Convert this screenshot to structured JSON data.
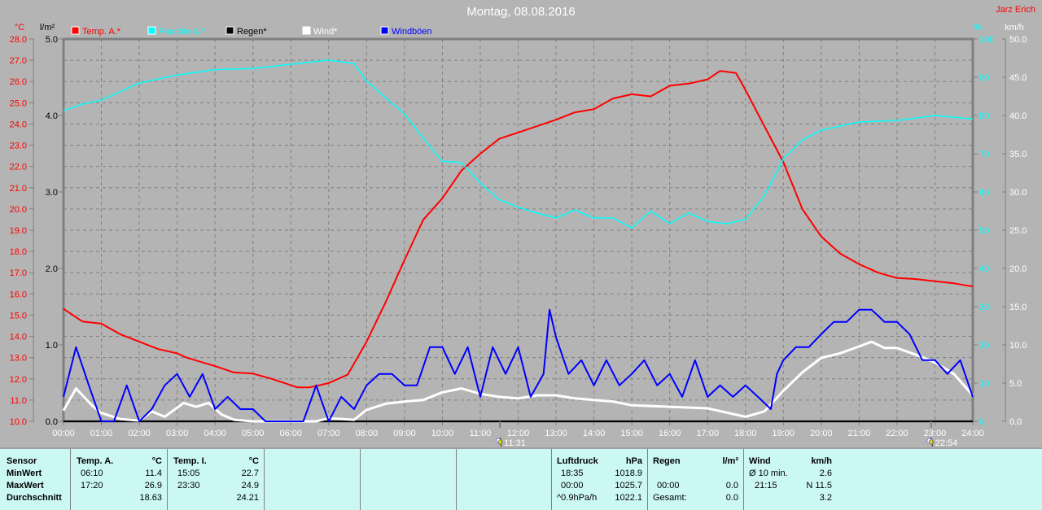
{
  "title": "Montag, 08.08.2016",
  "author": "Jarz Erich",
  "colors": {
    "temp": "#ff0000",
    "humidity": "#00ffff",
    "rain": "#000000",
    "wind": "#ffffff",
    "gusts": "#0000ff"
  },
  "markers": [
    {
      "label": "11:31",
      "time": 11.52,
      "icon": "sun-marker-icon"
    },
    {
      "label": "22:54",
      "time": 22.9,
      "icon": "moon-marker-icon"
    }
  ],
  "chart_data": {
    "type": "line",
    "title": "Montag, 08.08.2016",
    "x_unit": "hours",
    "xlim": [
      0,
      24
    ],
    "x_ticks": [
      "00:00",
      "01:00",
      "02:00",
      "03:00",
      "04:00",
      "05:00",
      "06:00",
      "07:00",
      "08:00",
      "09:00",
      "10:00",
      "11:00",
      "12:00",
      "13:00",
      "14:00",
      "15:00",
      "16:00",
      "17:00",
      "18:00",
      "19:00",
      "20:00",
      "21:00",
      "22:00",
      "23:00",
      "24:00"
    ],
    "axes": {
      "temp": {
        "unit": "°C",
        "range": [
          10,
          28
        ],
        "ticks": [
          "10.0",
          "11.0",
          "12.0",
          "13.0",
          "14.0",
          "15.0",
          "16.0",
          "17.0",
          "18.0",
          "19.0",
          "20.0",
          "21.0",
          "22.0",
          "23.0",
          "24.0",
          "25.0",
          "26.0",
          "27.0",
          "28.0"
        ]
      },
      "rain": {
        "unit": "l/m²",
        "range": [
          0,
          5
        ],
        "ticks": [
          "0.0",
          "1.0",
          "2.0",
          "3.0",
          "4.0",
          "5.0"
        ]
      },
      "humidity": {
        "unit": "%",
        "range": [
          0,
          100
        ],
        "ticks": [
          "0",
          "10",
          "20",
          "30",
          "40",
          "50",
          "60",
          "70",
          "80",
          "90",
          "100"
        ]
      },
      "wind": {
        "unit": "km/h",
        "range": [
          0,
          50
        ],
        "ticks": [
          "0.0",
          "5.0",
          "10.0",
          "15.0",
          "20.0",
          "25.0",
          "30.0",
          "35.0",
          "40.0",
          "45.0",
          "50.0"
        ]
      }
    },
    "legend": [
      "Temp. A.*",
      "Feuchte A.*",
      "Regen*",
      "Wind*",
      "Windböen"
    ],
    "legend_placement": "top",
    "grid": true,
    "series": [
      {
        "name": "Temp. A.*",
        "axis": "temp",
        "color": "#ff0000",
        "x": [
          0,
          0.5,
          1,
          1.5,
          2,
          2.5,
          3,
          3.25,
          4,
          4.5,
          5,
          5.5,
          6,
          6.17,
          6.5,
          7,
          7.5,
          8,
          8.5,
          9,
          9.5,
          10,
          10.5,
          11,
          11.5,
          12,
          12.5,
          13,
          13.5,
          14,
          14.5,
          15,
          15.5,
          16,
          16.5,
          17,
          17.33,
          17.75,
          18,
          18.5,
          19,
          19.5,
          20,
          20.5,
          21,
          21.5,
          22,
          22.5,
          23,
          23.5,
          24
        ],
        "y": [
          15.3,
          14.7,
          14.6,
          14.1,
          13.75,
          13.4,
          13.2,
          13.0,
          12.6,
          12.3,
          12.25,
          12.0,
          11.7,
          11.6,
          11.6,
          11.8,
          12.2,
          13.75,
          15.6,
          17.6,
          19.5,
          20.5,
          21.8,
          22.6,
          23.3,
          23.6,
          23.9,
          24.2,
          24.55,
          24.7,
          25.2,
          25.4,
          25.3,
          25.8,
          25.9,
          26.1,
          26.5,
          26.4,
          25.6,
          23.9,
          22.2,
          20.0,
          18.7,
          17.9,
          17.4,
          17.0,
          16.75,
          16.7,
          16.6,
          16.5,
          16.35
        ]
      },
      {
        "name": "Feuchte A.*",
        "axis": "humidity",
        "color": "#00ffff",
        "x": [
          0,
          0.5,
          1,
          2,
          3,
          4,
          5,
          6,
          7,
          7.67,
          8,
          8.5,
          9,
          9.5,
          10,
          10.5,
          11,
          11.5,
          12,
          12.5,
          13,
          13.5,
          14,
          14.5,
          15,
          15.5,
          16,
          16.5,
          17,
          17.5,
          18,
          18.5,
          19,
          19.5,
          20,
          21,
          22,
          23,
          24
        ],
        "y": [
          81.3,
          83,
          84,
          88.5,
          90.6,
          92,
          92.3,
          93.4,
          94.5,
          93.6,
          89,
          84.7,
          80.4,
          74,
          68,
          67.7,
          62.3,
          58,
          56,
          54.5,
          53.2,
          55.3,
          53.2,
          53.2,
          50.6,
          55,
          51.7,
          54.5,
          52.3,
          51.7,
          52.8,
          59,
          68.7,
          73.6,
          76.2,
          78.3,
          78.7,
          80,
          79.1
        ]
      },
      {
        "name": "Regen*",
        "axis": "rain",
        "color": "#000000",
        "x": [
          0,
          24
        ],
        "y": [
          0,
          0
        ]
      },
      {
        "name": "Wind*",
        "axis": "wind",
        "color": "#ffffff",
        "x": [
          0,
          0.33,
          0.75,
          1,
          1.5,
          2,
          2.33,
          2.67,
          3.17,
          3.5,
          3.83,
          4.17,
          4.5,
          5,
          6.67,
          7,
          7.67,
          8,
          8.5,
          9,
          9.5,
          10,
          10.5,
          11,
          11.5,
          12,
          12.5,
          13,
          13.5,
          14,
          14.5,
          15,
          16,
          17,
          18,
          18.5,
          19,
          19.5,
          20,
          20.5,
          21,
          21.33,
          21.67,
          22,
          22.5,
          23,
          23.5,
          24
        ],
        "y": [
          1.4,
          4.3,
          2.1,
          1.1,
          0.3,
          0.1,
          1.3,
          0.6,
          2.4,
          1.9,
          2.4,
          0.9,
          0.2,
          0,
          0,
          0.4,
          0.2,
          1.5,
          2.3,
          2.6,
          2.8,
          3.8,
          4.3,
          3.6,
          3.2,
          3.0,
          3.4,
          3.4,
          3.0,
          2.8,
          2.6,
          2.1,
          1.9,
          1.7,
          0.6,
          1.3,
          4.0,
          6.4,
          8.3,
          8.9,
          9.8,
          10.4,
          9.6,
          9.6,
          8.7,
          7.7,
          6.2,
          3.4
        ]
      },
      {
        "name": "Windböen",
        "axis": "wind",
        "color": "#0000ff",
        "x": [
          0,
          0.33,
          0.67,
          1,
          1.33,
          1.67,
          2,
          2.33,
          2.67,
          3,
          3.33,
          3.67,
          4,
          4.33,
          4.67,
          5,
          5.33,
          5.67,
          6,
          6.33,
          6.67,
          7,
          7.33,
          7.67,
          8,
          8.33,
          8.67,
          9,
          9.33,
          9.67,
          10,
          10.33,
          10.67,
          11,
          11.33,
          11.67,
          12,
          12.33,
          12.67,
          12.83,
          13,
          13.33,
          13.67,
          14,
          14.33,
          14.67,
          15,
          15.33,
          15.67,
          16,
          16.33,
          16.67,
          17,
          17.33,
          17.67,
          18,
          18.33,
          18.67,
          18.83,
          19,
          19.33,
          19.67,
          20,
          20.33,
          20.67,
          21,
          21.33,
          21.67,
          22,
          22.33,
          22.67,
          23,
          23.33,
          23.67,
          24
        ],
        "y": [
          3.2,
          9.7,
          4.7,
          0,
          0,
          4.7,
          0,
          1.6,
          4.7,
          6.2,
          3.2,
          6.2,
          1.6,
          3.2,
          1.6,
          1.6,
          0,
          0,
          0,
          0,
          4.7,
          0,
          3.2,
          1.6,
          4.7,
          6.2,
          6.2,
          4.7,
          4.7,
          9.7,
          9.7,
          6.2,
          9.7,
          3.2,
          9.7,
          6.2,
          9.7,
          3.2,
          6.2,
          14.6,
          11,
          6.2,
          8,
          4.7,
          8,
          4.7,
          6.2,
          8,
          4.7,
          6.2,
          3.2,
          8,
          3.2,
          4.7,
          3.2,
          4.7,
          3.2,
          1.6,
          6.2,
          8,
          9.7,
          9.7,
          11.4,
          13,
          13,
          14.6,
          14.6,
          13,
          13,
          11.4,
          8,
          8,
          6.2,
          8,
          3.2
        ]
      }
    ]
  },
  "panel": {
    "sensor": {
      "header": "Sensor",
      "min": "MinWert",
      "max": "MaxWert",
      "avg": "Durchschnitt"
    },
    "temp_a": {
      "header": "Temp. A.",
      "unit": "°C",
      "min_time": "06:10",
      "min": "11.4",
      "max_time": "17:20",
      "max": "26.9",
      "avg": "18.63"
    },
    "temp_i": {
      "header": "Temp. I.",
      "unit": "°C",
      "min_time": "15:05",
      "min": "22.7",
      "max_time": "23:30",
      "max": "24.9",
      "avg": "24.21"
    },
    "pressure": {
      "header": "Luftdruck",
      "unit": "hPa",
      "r1_label": "18:35",
      "r1": "1018.9",
      "r2_label": "00:00",
      "r2": "1025.7",
      "r3_label": "^0.9hPa/h",
      "r3": "1022.1"
    },
    "rain": {
      "header": "Regen",
      "unit": "l/m²",
      "r2_label": "00:00",
      "r2": "0.0",
      "r3_label": "Gesamt:",
      "r3": "0.0"
    },
    "wind": {
      "header": "Wind",
      "unit": "km/h",
      "r1_label": "Ø 10 min.",
      "r1": "2.6",
      "r2_label": "21:15",
      "r2": "N 11.5",
      "r3": "3.2"
    }
  }
}
